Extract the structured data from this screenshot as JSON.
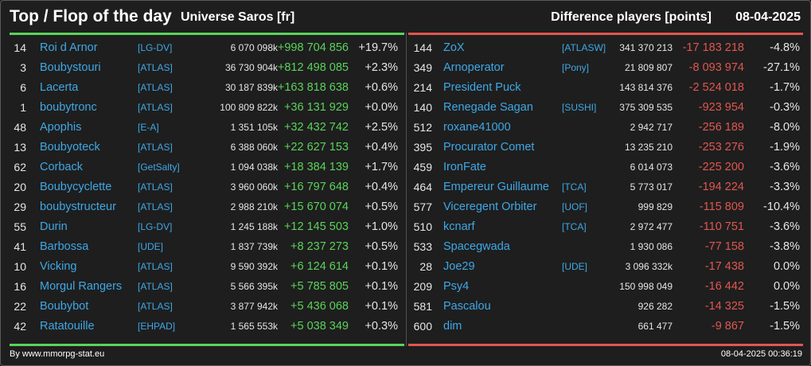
{
  "header": {
    "title": "Top / Flop of the day",
    "universe": "Universe Saros [fr]",
    "metric": "Difference players [points]",
    "date": "08-04-2025"
  },
  "colors": {
    "positive": "#5ad35a",
    "negative": "#e0564f",
    "link": "#3ea8e6",
    "background": "#1e1e1e"
  },
  "top": [
    {
      "rank": "14",
      "name": "Roi d Arnor",
      "ally": "[LG-DV]",
      "score": "6 070 098k",
      "diff": "+998 704 856",
      "pct": "+19.7%"
    },
    {
      "rank": "3",
      "name": "Boubystouri",
      "ally": "[ATLAS]",
      "score": "36 730 904k",
      "diff": "+812 498 085",
      "pct": "+2.3%"
    },
    {
      "rank": "6",
      "name": "Lacerta",
      "ally": "[ATLAS]",
      "score": "30 187 839k",
      "diff": "+163 818 638",
      "pct": "+0.6%"
    },
    {
      "rank": "1",
      "name": "boubytronc",
      "ally": "[ATLAS]",
      "score": "100 809 822k",
      "diff": "+36 131 929",
      "pct": "+0.0%"
    },
    {
      "rank": "48",
      "name": "Apophis",
      "ally": "[E-A]",
      "score": "1 351 105k",
      "diff": "+32 432 742",
      "pct": "+2.5%"
    },
    {
      "rank": "13",
      "name": "Bouby​oteck",
      "ally": "[ATLAS]",
      "score": "6 388 060k",
      "diff": "+22 627 153",
      "pct": "+0.4%"
    },
    {
      "rank": "62",
      "name": "Corback",
      "ally": "[GetSalty]",
      "score": "1 094 038k",
      "diff": "+18 384 139",
      "pct": "+1.7%"
    },
    {
      "rank": "20",
      "name": "Boubycyclette",
      "ally": "[ATLAS]",
      "score": "3 960 060k",
      "diff": "+16 797 648",
      "pct": "+0.4%"
    },
    {
      "rank": "29",
      "name": "boubystructeur",
      "ally": "[ATLAS]",
      "score": "2 988 210k",
      "diff": "+15 670 074",
      "pct": "+0.5%"
    },
    {
      "rank": "55",
      "name": "Durin",
      "ally": "[LG-DV]",
      "score": "1 245 188k",
      "diff": "+12 145 503",
      "pct": "+1.0%"
    },
    {
      "rank": "41",
      "name": "Barbossa",
      "ally": "[UDE]",
      "score": "1 837 739k",
      "diff": "+8 237 273",
      "pct": "+0.5%"
    },
    {
      "rank": "10",
      "name": "Vicking",
      "ally": "[ATLAS]",
      "score": "9 590 392k",
      "diff": "+6 124 614",
      "pct": "+0.1%"
    },
    {
      "rank": "16",
      "name": "Morgul Rangers",
      "ally": "[ATLAS]",
      "score": "5 566 395k",
      "diff": "+5 785 805",
      "pct": "+0.1%"
    },
    {
      "rank": "22",
      "name": "Boubybot",
      "ally": "[ATLAS]",
      "score": "3 877 942k",
      "diff": "+5 436 068",
      "pct": "+0.1%"
    },
    {
      "rank": "42",
      "name": "Ratatouille",
      "ally": "[EHPAD]",
      "score": "1 565 553k",
      "diff": "+5 038 349",
      "pct": "+0.3%"
    }
  ],
  "flop": [
    {
      "rank": "144",
      "name": "ZoX",
      "ally": "[ATLASW]",
      "score": "341 370 213",
      "diff": "-17 183 218",
      "pct": "-4.8%"
    },
    {
      "rank": "349",
      "name": "Arnoperator",
      "ally": "[Pony]",
      "score": "21 809 807",
      "diff": "-8 093 974",
      "pct": "-27.1%"
    },
    {
      "rank": "214",
      "name": "President Puck",
      "ally": "",
      "score": "143 814 376",
      "diff": "-2 524 018",
      "pct": "-1.7%"
    },
    {
      "rank": "140",
      "name": "Renegade Sagan",
      "ally": "[SUSHI]",
      "score": "375 309 535",
      "diff": "-923 954",
      "pct": "-0.3%"
    },
    {
      "rank": "512",
      "name": "roxane41000",
      "ally": "",
      "score": "2 942 717",
      "diff": "-256 189",
      "pct": "-8.0%"
    },
    {
      "rank": "395",
      "name": "Procurator Comet",
      "ally": "",
      "score": "13 235 210",
      "diff": "-253 276",
      "pct": "-1.9%"
    },
    {
      "rank": "459",
      "name": "IronFate",
      "ally": "",
      "score": "6 014 073",
      "diff": "-225 200",
      "pct": "-3.6%"
    },
    {
      "rank": "464",
      "name": "Empereur Guillaume",
      "ally": "[TCA]",
      "score": "5 773 017",
      "diff": "-194 224",
      "pct": "-3.3%"
    },
    {
      "rank": "577",
      "name": "Viceregent Orbiter",
      "ally": "[UOF]",
      "score": "999 829",
      "diff": "-115 809",
      "pct": "-10.4%"
    },
    {
      "rank": "510",
      "name": "kcnarf",
      "ally": "[TCA]",
      "score": "2 972 477",
      "diff": "-110 751",
      "pct": "-3.6%"
    },
    {
      "rank": "533",
      "name": "Spacegwada",
      "ally": "",
      "score": "1 930 086",
      "diff": "-77 158",
      "pct": "-3.8%"
    },
    {
      "rank": "28",
      "name": "Joe29",
      "ally": "[UDE]",
      "score": "3 096 332k",
      "diff": "-17 438",
      "pct": "0.0%"
    },
    {
      "rank": "209",
      "name": "Psy4",
      "ally": "",
      "score": "150 998 049",
      "diff": "-16 442",
      "pct": "0.0%"
    },
    {
      "rank": "581",
      "name": "Pascalou",
      "ally": "",
      "score": "926 282",
      "diff": "-14 325",
      "pct": "-1.5%"
    },
    {
      "rank": "600",
      "name": "dim",
      "ally": "",
      "score": "661 477",
      "diff": "-9 867",
      "pct": "-1.5%"
    }
  ],
  "footer": {
    "source": "By www.mmorpg-stat.eu",
    "timestamp": "08-04-2025 00:36:19"
  }
}
